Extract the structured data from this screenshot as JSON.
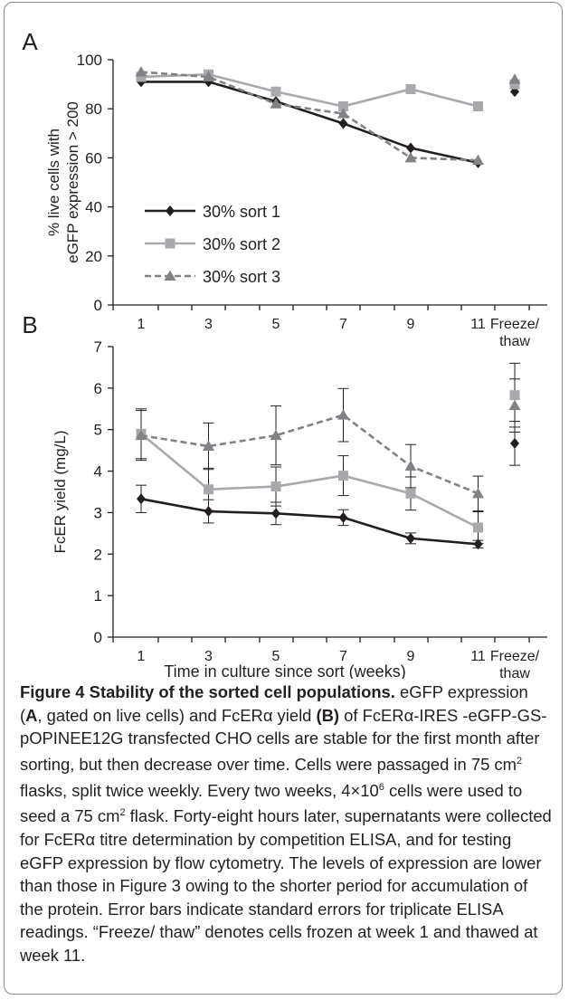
{
  "chart_data": [
    {
      "panel_label": "A",
      "type": "line",
      "ylabel_lines": [
        "% live cells with",
        "eGFP expression > 200"
      ],
      "ylim": [
        0,
        100
      ],
      "yticks": [
        0,
        20,
        40,
        60,
        80,
        100
      ],
      "xticks": [
        "1",
        "3",
        "5",
        "7",
        "9",
        "11"
      ],
      "extra_tick": [
        "Freeze/",
        "thaw"
      ],
      "series": [
        {
          "name": "30% sort 1",
          "color": "#231f20",
          "marker": "diamond",
          "dashed": false,
          "x": [
            1,
            3,
            5,
            7,
            9,
            11
          ],
          "values": [
            91,
            91,
            83,
            74,
            64,
            58
          ],
          "freeze_thaw": 87
        },
        {
          "name": "30% sort 2",
          "color": "#a7a9ac",
          "marker": "square",
          "dashed": false,
          "x": [
            1,
            3,
            5,
            7,
            9,
            11
          ],
          "values": [
            93,
            94,
            87,
            81,
            88,
            81
          ],
          "freeze_thaw": 90
        },
        {
          "name": "30% sort 3",
          "color": "#808285",
          "marker": "triangle",
          "dashed": true,
          "x": [
            1,
            3,
            5,
            7,
            9,
            11
          ],
          "values": [
            95,
            93,
            82,
            78,
            60,
            59
          ],
          "freeze_thaw": 92
        }
      ]
    },
    {
      "panel_label": "B",
      "type": "line",
      "ylabel": "FcER yield (mg/L)",
      "xlabel": "Time in culture since sort (weeks)",
      "ylim": [
        0,
        7
      ],
      "yticks": [
        0,
        1,
        2,
        3,
        4,
        5,
        6,
        7
      ],
      "xticks": [
        "1",
        "3",
        "5",
        "7",
        "9",
        "11"
      ],
      "extra_tick": [
        "Freeze/",
        "thaw"
      ],
      "series": [
        {
          "name": "30% sort 1",
          "color": "#231f20",
          "marker": "diamond",
          "dashed": false,
          "x": [
            1,
            3,
            5,
            7,
            9,
            11
          ],
          "values": [
            3.33,
            3.03,
            2.98,
            2.88,
            2.38,
            2.24
          ],
          "errors": [
            0.33,
            0.28,
            0.27,
            0.19,
            0.13,
            0.09
          ],
          "freeze_thaw": 4.67,
          "freeze_thaw_error": 0.53
        },
        {
          "name": "30% sort 2",
          "color": "#a7a9ac",
          "marker": "square",
          "dashed": false,
          "x": [
            1,
            3,
            5,
            7,
            9,
            11
          ],
          "values": [
            4.9,
            3.56,
            3.63,
            3.89,
            3.46,
            2.64
          ],
          "errors": [
            0.6,
            0.51,
            0.47,
            0.48,
            0.4,
            0.38
          ],
          "freeze_thaw": 5.83,
          "freeze_thaw_error": 0.77
        },
        {
          "name": "30% sort 3",
          "color": "#808285",
          "marker": "triangle",
          "dashed": true,
          "x": [
            1,
            3,
            5,
            7,
            9,
            11
          ],
          "values": [
            4.86,
            4.6,
            4.86,
            5.35,
            4.12,
            3.46
          ],
          "errors": [
            0.6,
            0.56,
            0.71,
            0.64,
            0.52,
            0.42
          ],
          "freeze_thaw": 5.58,
          "freeze_thaw_error": 0.64
        }
      ]
    }
  ],
  "caption": {
    "label": "Figure 4",
    "title": "Stability of the sorted cell populations.",
    "text": [
      " eGFP expression (",
      {
        "b": "A"
      },
      ", gated on live cells) and FcERα yield ",
      {
        "b": "(B)"
      },
      " of FcERα-IRES -eGFP-GS-pOPINEE12G transfected CHO cells are stable for the first month after sorting, but then decrease over time. Cells were passaged in 75 cm",
      {
        "sup": "2"
      },
      " flasks, split twice weekly. Every two weeks, 4×10",
      {
        "sup": "6"
      },
      " cells were used to seed a 75 cm",
      {
        "sup": "2"
      },
      " flask. Forty-eight hours later, supernatants were collected for FcERα titre determination by competition ELISA, and for testing eGFP expression by flow cytometry. The levels of expression are lower than those in Figure 3 owing to the shorter period for accumulation of the protein. Error bars indicate standard errors for triplicate ELISA readings. “Freeze/ thaw” denotes cells frozen at week 1 and thawed at week 11."
    ]
  }
}
